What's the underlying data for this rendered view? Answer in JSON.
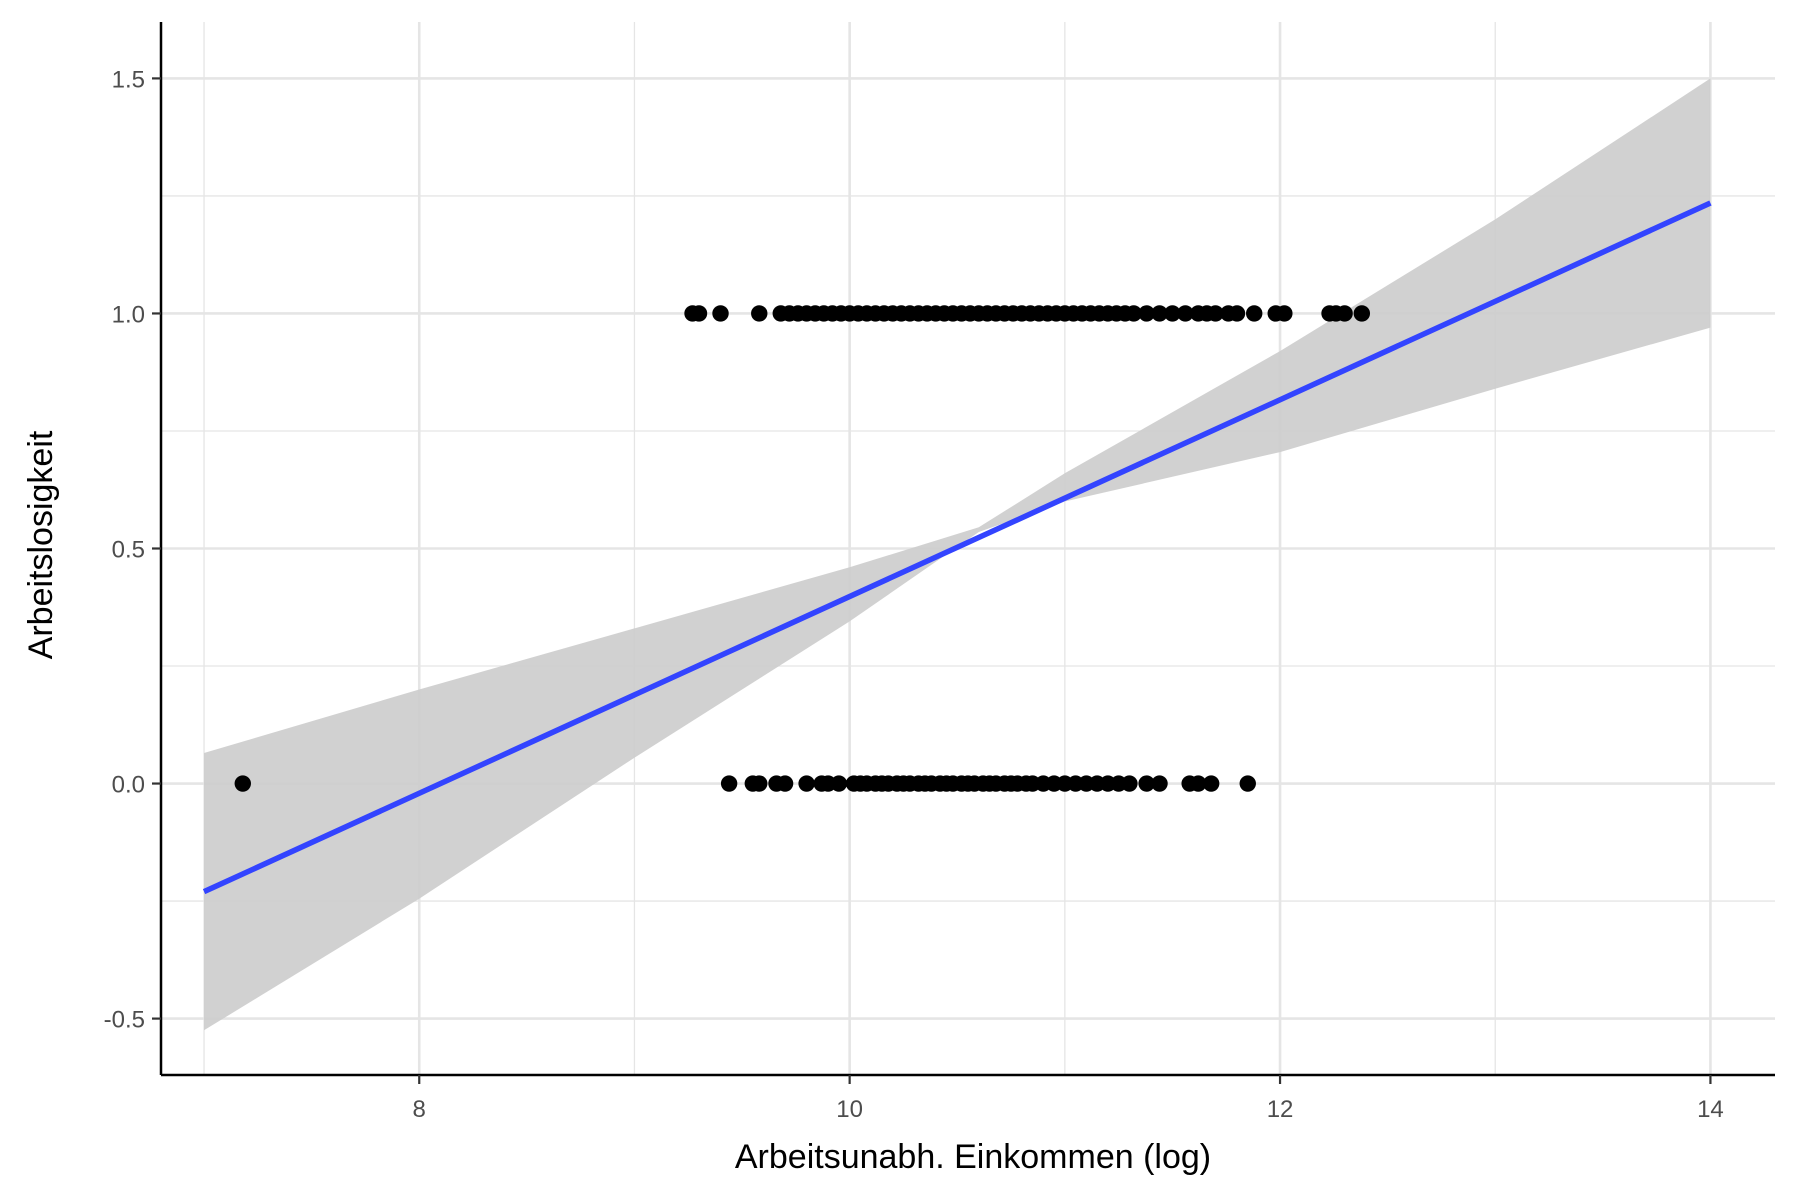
{
  "chart_data": {
    "type": "scatter",
    "title": "",
    "xlabel": "Arbeitsunabh. Einkommen (log)",
    "ylabel": "Arbeitslosigkeit",
    "xlim": [
      6.8,
      14.3
    ],
    "ylim": [
      -0.62,
      1.62
    ],
    "x_ticks": [
      8,
      10,
      12,
      14
    ],
    "x_tick_labels": [
      "8",
      "10",
      "12",
      "14"
    ],
    "y_ticks": [
      -0.5,
      0.0,
      0.5,
      1.0,
      1.5
    ],
    "y_tick_labels": [
      "-0.5",
      "0.0",
      "0.5",
      "1.0",
      "1.5"
    ],
    "grid": true,
    "legend": "none",
    "points": [
      {
        "x": 7.18,
        "y": 0
      },
      {
        "x": 9.44,
        "y": 0
      },
      {
        "x": 9.55,
        "y": 0
      },
      {
        "x": 9.58,
        "y": 0
      },
      {
        "x": 9.66,
        "y": 0
      },
      {
        "x": 9.7,
        "y": 0
      },
      {
        "x": 9.8,
        "y": 0
      },
      {
        "x": 9.87,
        "y": 0
      },
      {
        "x": 9.9,
        "y": 0
      },
      {
        "x": 9.95,
        "y": 0
      },
      {
        "x": 10.02,
        "y": 0
      },
      {
        "x": 10.05,
        "y": 0
      },
      {
        "x": 10.08,
        "y": 0
      },
      {
        "x": 10.12,
        "y": 0
      },
      {
        "x": 10.15,
        "y": 0
      },
      {
        "x": 10.18,
        "y": 0
      },
      {
        "x": 10.22,
        "y": 0
      },
      {
        "x": 10.25,
        "y": 0
      },
      {
        "x": 10.28,
        "y": 0
      },
      {
        "x": 10.32,
        "y": 0
      },
      {
        "x": 10.35,
        "y": 0
      },
      {
        "x": 10.38,
        "y": 0
      },
      {
        "x": 10.42,
        "y": 0
      },
      {
        "x": 10.45,
        "y": 0
      },
      {
        "x": 10.48,
        "y": 0
      },
      {
        "x": 10.52,
        "y": 0
      },
      {
        "x": 10.55,
        "y": 0
      },
      {
        "x": 10.58,
        "y": 0
      },
      {
        "x": 10.62,
        "y": 0
      },
      {
        "x": 10.65,
        "y": 0
      },
      {
        "x": 10.68,
        "y": 0
      },
      {
        "x": 10.72,
        "y": 0
      },
      {
        "x": 10.75,
        "y": 0
      },
      {
        "x": 10.78,
        "y": 0
      },
      {
        "x": 10.82,
        "y": 0
      },
      {
        "x": 10.85,
        "y": 0
      },
      {
        "x": 10.9,
        "y": 0
      },
      {
        "x": 10.95,
        "y": 0
      },
      {
        "x": 11.0,
        "y": 0
      },
      {
        "x": 11.05,
        "y": 0
      },
      {
        "x": 11.1,
        "y": 0
      },
      {
        "x": 11.15,
        "y": 0
      },
      {
        "x": 11.2,
        "y": 0
      },
      {
        "x": 11.25,
        "y": 0
      },
      {
        "x": 11.3,
        "y": 0
      },
      {
        "x": 11.38,
        "y": 0
      },
      {
        "x": 11.44,
        "y": 0
      },
      {
        "x": 11.58,
        "y": 0
      },
      {
        "x": 11.62,
        "y": 0
      },
      {
        "x": 11.68,
        "y": 0
      },
      {
        "x": 11.85,
        "y": 0
      },
      {
        "x": 9.27,
        "y": 1
      },
      {
        "x": 9.3,
        "y": 1
      },
      {
        "x": 9.4,
        "y": 1
      },
      {
        "x": 9.58,
        "y": 1
      },
      {
        "x": 9.68,
        "y": 1
      },
      {
        "x": 9.72,
        "y": 1
      },
      {
        "x": 9.76,
        "y": 1
      },
      {
        "x": 9.8,
        "y": 1
      },
      {
        "x": 9.84,
        "y": 1
      },
      {
        "x": 9.88,
        "y": 1
      },
      {
        "x": 9.92,
        "y": 1
      },
      {
        "x": 9.96,
        "y": 1
      },
      {
        "x": 10.0,
        "y": 1
      },
      {
        "x": 10.04,
        "y": 1
      },
      {
        "x": 10.08,
        "y": 1
      },
      {
        "x": 10.12,
        "y": 1
      },
      {
        "x": 10.16,
        "y": 1
      },
      {
        "x": 10.2,
        "y": 1
      },
      {
        "x": 10.24,
        "y": 1
      },
      {
        "x": 10.28,
        "y": 1
      },
      {
        "x": 10.32,
        "y": 1
      },
      {
        "x": 10.36,
        "y": 1
      },
      {
        "x": 10.4,
        "y": 1
      },
      {
        "x": 10.44,
        "y": 1
      },
      {
        "x": 10.48,
        "y": 1
      },
      {
        "x": 10.52,
        "y": 1
      },
      {
        "x": 10.56,
        "y": 1
      },
      {
        "x": 10.6,
        "y": 1
      },
      {
        "x": 10.64,
        "y": 1
      },
      {
        "x": 10.68,
        "y": 1
      },
      {
        "x": 10.72,
        "y": 1
      },
      {
        "x": 10.76,
        "y": 1
      },
      {
        "x": 10.8,
        "y": 1
      },
      {
        "x": 10.84,
        "y": 1
      },
      {
        "x": 10.88,
        "y": 1
      },
      {
        "x": 10.92,
        "y": 1
      },
      {
        "x": 10.96,
        "y": 1
      },
      {
        "x": 11.0,
        "y": 1
      },
      {
        "x": 11.04,
        "y": 1
      },
      {
        "x": 11.08,
        "y": 1
      },
      {
        "x": 11.12,
        "y": 1
      },
      {
        "x": 11.16,
        "y": 1
      },
      {
        "x": 11.2,
        "y": 1
      },
      {
        "x": 11.24,
        "y": 1
      },
      {
        "x": 11.28,
        "y": 1
      },
      {
        "x": 11.32,
        "y": 1
      },
      {
        "x": 11.38,
        "y": 1
      },
      {
        "x": 11.44,
        "y": 1
      },
      {
        "x": 11.5,
        "y": 1
      },
      {
        "x": 11.56,
        "y": 1
      },
      {
        "x": 11.62,
        "y": 1
      },
      {
        "x": 11.66,
        "y": 1
      },
      {
        "x": 11.7,
        "y": 1
      },
      {
        "x": 11.76,
        "y": 1
      },
      {
        "x": 11.8,
        "y": 1
      },
      {
        "x": 11.88,
        "y": 1
      },
      {
        "x": 11.98,
        "y": 1
      },
      {
        "x": 12.02,
        "y": 1
      },
      {
        "x": 12.23,
        "y": 1
      },
      {
        "x": 12.26,
        "y": 1
      },
      {
        "x": 12.3,
        "y": 1
      },
      {
        "x": 12.38,
        "y": 1
      }
    ],
    "fit_line": {
      "color": "#3344ff",
      "x": [
        7.0,
        14.0
      ],
      "y": [
        -0.23,
        1.235
      ]
    },
    "confidence_band": {
      "color": "#cccccc",
      "x": [
        7.0,
        8.0,
        9.0,
        10.0,
        10.6,
        11.0,
        12.0,
        13.0,
        14.0
      ],
      "upper": [
        0.065,
        0.2,
        0.33,
        0.46,
        0.545,
        0.66,
        0.92,
        1.2,
        1.5
      ],
      "lower": [
        -0.525,
        -0.245,
        0.055,
        0.345,
        0.535,
        0.6,
        0.705,
        0.84,
        0.97
      ]
    },
    "colors": {
      "points": "#000000",
      "grid": "#e5e5e5",
      "axis": "#000000"
    }
  }
}
